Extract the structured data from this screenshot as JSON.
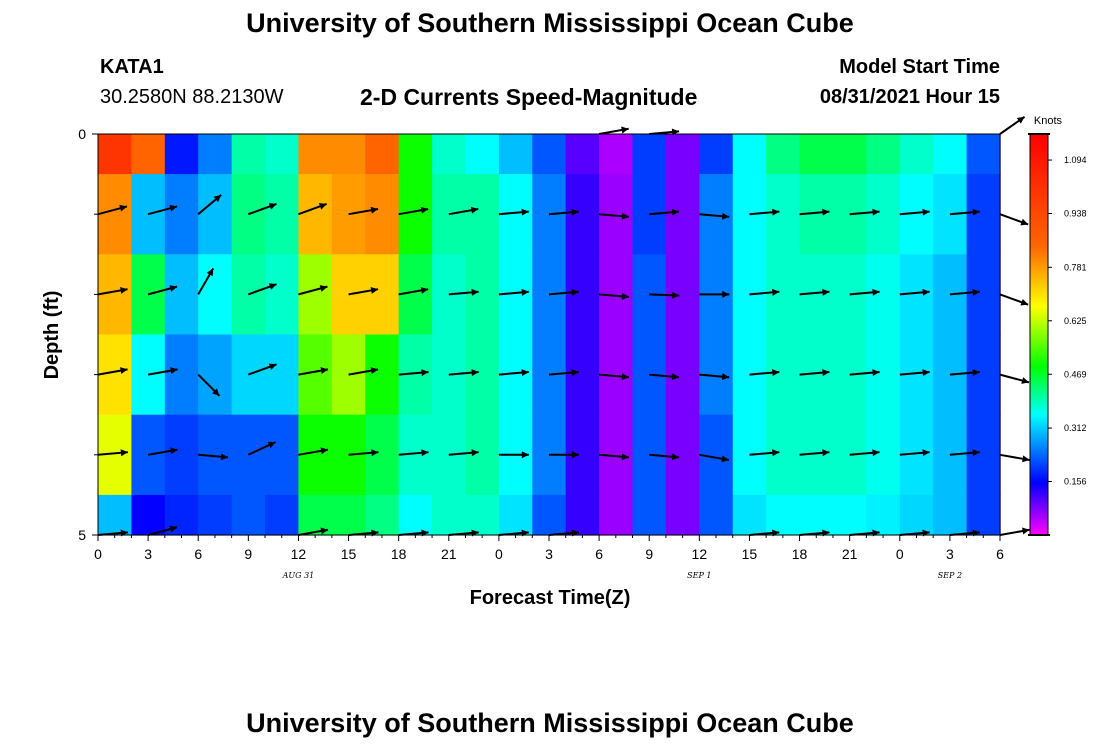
{
  "header": {
    "title": "University of Southern Mississippi Ocean Cube",
    "station": "KATA1",
    "coordinates": "30.2580N  88.2130W",
    "subtitle": "2-D Currents Speed-Magnitude",
    "model_start_label": "Model Start Time",
    "model_start_value": "08/31/2021 Hour 15"
  },
  "footer": {
    "title": "University of Southern Mississippi Ocean Cube"
  },
  "chart_data": {
    "type": "heatmap",
    "xlabel": "Forecast Time(Z)",
    "ylabel": "Depth (ft)",
    "ylim": [
      0,
      5
    ],
    "x_ticks": [
      "0",
      "3",
      "6",
      "9",
      "12",
      "15",
      "18",
      "21",
      "0",
      "3",
      "6",
      "9",
      "12",
      "15",
      "18",
      "21",
      "0",
      "3",
      "6"
    ],
    "date_labels": [
      {
        "text": "AUG 31",
        "at_tick": 4
      },
      {
        "text": "SEP 1",
        "at_tick": 12
      },
      {
        "text": "SEP 2",
        "at_tick": 17
      }
    ],
    "y_ticks": [
      "0",
      "5"
    ],
    "colorbar": {
      "label": "Knots",
      "min": 0.0,
      "max": 1.17,
      "ticks": [
        "1.094",
        "0.938",
        "0.781",
        "0.625",
        "0.469",
        "0.312",
        "0.156"
      ],
      "tick_values": [
        1.094,
        0.938,
        0.781,
        0.625,
        0.469,
        0.312,
        0.156
      ]
    },
    "depth_bins": [
      "0-0.5",
      "0.5-1.5",
      "1.5-2.5",
      "2.5-3.5",
      "3.5-4.5",
      "4.5-5"
    ],
    "time_hours": [
      0,
      2,
      4,
      6,
      8,
      10,
      12,
      14,
      16,
      18,
      20,
      22,
      24,
      26,
      28,
      30,
      32,
      34,
      36,
      38,
      40,
      42,
      44,
      46,
      48,
      50,
      52,
      54
    ],
    "speed_knots": [
      [
        1.0,
        0.85,
        0.17,
        0.25,
        0.4,
        0.38,
        0.8,
        0.8,
        0.85,
        0.5,
        0.38,
        0.35,
        0.3,
        0.22,
        0.1,
        0.05,
        0.2,
        0.08,
        0.2,
        0.35,
        0.42,
        0.45,
        0.45,
        0.42,
        0.38,
        0.35,
        0.22,
        0.1
      ],
      [
        0.8,
        0.3,
        0.25,
        0.3,
        0.42,
        0.4,
        0.75,
        0.78,
        0.8,
        0.5,
        0.4,
        0.4,
        0.35,
        0.25,
        0.12,
        0.06,
        0.2,
        0.08,
        0.25,
        0.35,
        0.38,
        0.4,
        0.4,
        0.38,
        0.35,
        0.33,
        0.2,
        0.12
      ],
      [
        0.75,
        0.45,
        0.3,
        0.35,
        0.4,
        0.38,
        0.6,
        0.72,
        0.72,
        0.45,
        0.38,
        0.4,
        0.35,
        0.25,
        0.12,
        0.06,
        0.22,
        0.08,
        0.25,
        0.35,
        0.38,
        0.38,
        0.38,
        0.36,
        0.33,
        0.3,
        0.2,
        0.12
      ],
      [
        0.7,
        0.35,
        0.25,
        0.28,
        0.32,
        0.32,
        0.55,
        0.6,
        0.5,
        0.4,
        0.38,
        0.4,
        0.35,
        0.25,
        0.12,
        0.06,
        0.22,
        0.08,
        0.25,
        0.35,
        0.38,
        0.38,
        0.38,
        0.36,
        0.33,
        0.3,
        0.2,
        0.12
      ],
      [
        0.65,
        0.22,
        0.2,
        0.22,
        0.22,
        0.22,
        0.5,
        0.5,
        0.45,
        0.38,
        0.38,
        0.4,
        0.35,
        0.25,
        0.12,
        0.06,
        0.22,
        0.08,
        0.22,
        0.35,
        0.38,
        0.38,
        0.38,
        0.36,
        0.33,
        0.3,
        0.2,
        0.12
      ],
      [
        0.3,
        0.15,
        0.18,
        0.2,
        0.22,
        0.2,
        0.45,
        0.45,
        0.42,
        0.35,
        0.38,
        0.38,
        0.33,
        0.22,
        0.12,
        0.06,
        0.22,
        0.08,
        0.22,
        0.33,
        0.35,
        0.35,
        0.35,
        0.34,
        0.32,
        0.3,
        0.2,
        0.12
      ]
    ],
    "vector_hours": [
      0,
      3,
      6,
      9,
      12,
      15,
      18,
      21,
      24,
      27,
      30,
      33,
      36,
      39,
      42,
      45,
      48,
      51,
      54
    ],
    "vector_rows": [
      {
        "depth": 0.0,
        "directions_deg": [
          null,
          null,
          null,
          null,
          null,
          null,
          null,
          null,
          null,
          null,
          10,
          5,
          null,
          null,
          null,
          null,
          null,
          null,
          35
        ]
      },
      {
        "depth": 1.0,
        "directions_deg": [
          15,
          15,
          40,
          20,
          20,
          10,
          10,
          10,
          5,
          5,
          -5,
          5,
          -5,
          5,
          5,
          5,
          5,
          5,
          -20
        ]
      },
      {
        "depth": 2.0,
        "directions_deg": [
          10,
          15,
          60,
          20,
          15,
          10,
          10,
          5,
          5,
          5,
          -5,
          -2,
          0,
          5,
          5,
          5,
          5,
          5,
          -20
        ]
      },
      {
        "depth": 3.0,
        "directions_deg": [
          10,
          10,
          -45,
          20,
          10,
          10,
          5,
          5,
          5,
          5,
          -5,
          -5,
          -5,
          5,
          5,
          5,
          5,
          5,
          -15
        ]
      },
      {
        "depth": 4.0,
        "directions_deg": [
          5,
          10,
          -5,
          25,
          10,
          5,
          5,
          5,
          0,
          0,
          -5,
          -5,
          -10,
          5,
          5,
          5,
          5,
          5,
          -10
        ]
      },
      {
        "depth": 5.0,
        "directions_deg": [
          5,
          15,
          null,
          null,
          10,
          5,
          5,
          5,
          5,
          5,
          null,
          null,
          null,
          5,
          5,
          5,
          5,
          5,
          10
        ]
      }
    ]
  }
}
